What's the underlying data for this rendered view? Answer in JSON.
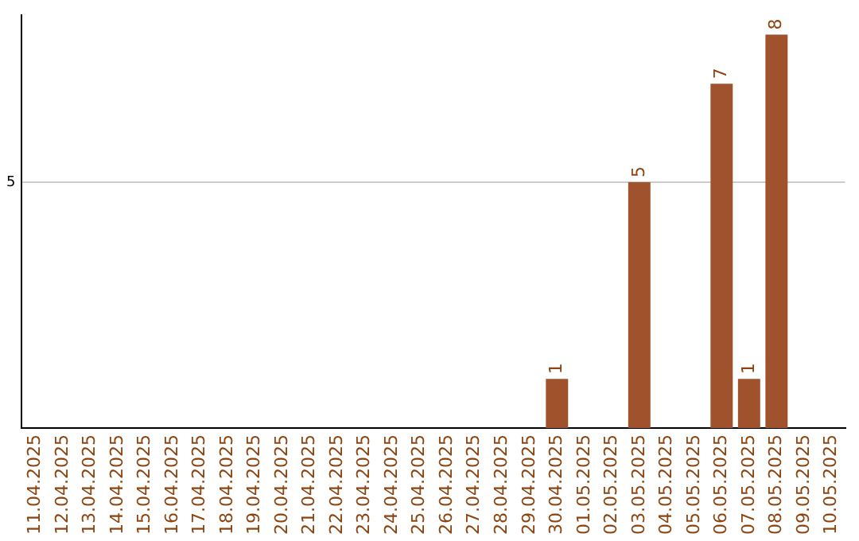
{
  "chart_data": {
    "type": "bar",
    "categories": [
      "11.04.2025",
      "12.04.2025",
      "13.04.2025",
      "14.04.2025",
      "15.04.2025",
      "16.04.2025",
      "17.04.2025",
      "18.04.2025",
      "19.04.2025",
      "20.04.2025",
      "21.04.2025",
      "22.04.2025",
      "23.04.2025",
      "24.04.2025",
      "25.04.2025",
      "26.04.2025",
      "27.04.2025",
      "28.04.2025",
      "29.04.2025",
      "30.04.2025",
      "01.05.2025",
      "02.05.2025",
      "03.05.2025",
      "04.05.2025",
      "05.05.2025",
      "06.05.2025",
      "07.05.2025",
      "08.05.2025",
      "09.05.2025",
      "10.05.2025"
    ],
    "values": [
      null,
      null,
      null,
      null,
      null,
      null,
      null,
      null,
      null,
      null,
      null,
      null,
      null,
      null,
      null,
      null,
      null,
      null,
      null,
      1,
      null,
      null,
      5,
      null,
      null,
      7,
      1,
      8,
      null,
      null
    ],
    "color": "#a0522d",
    "ylim": [
      0,
      8.4
    ],
    "yticks": [
      5
    ],
    "grid": "y",
    "data_labels": true,
    "legend": false
  }
}
